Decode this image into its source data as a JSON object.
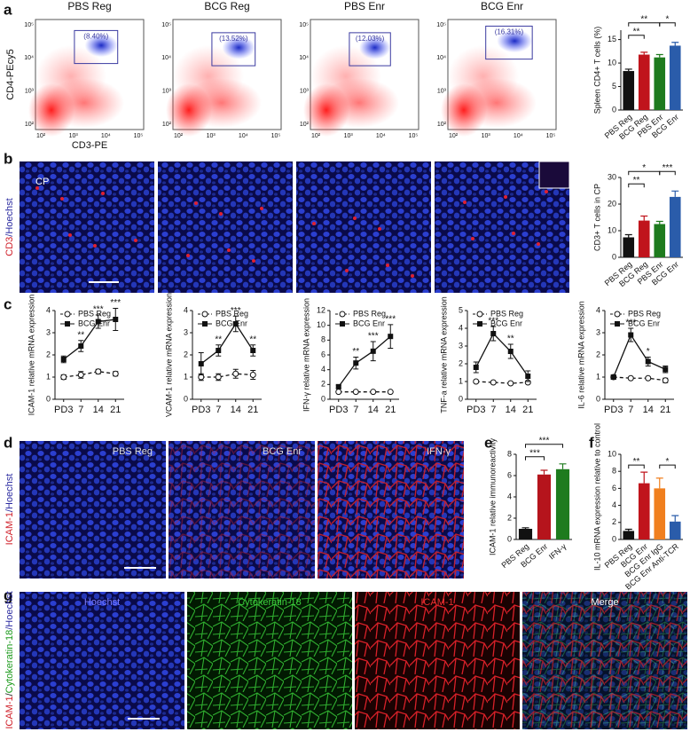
{
  "panels": {
    "labels": [
      "a",
      "b",
      "c",
      "d",
      "e",
      "f",
      "g"
    ],
    "flow": {
      "titles": [
        "PBS Reg",
        "BCG Reg",
        "PBS Enr",
        "BCG Enr"
      ],
      "gates": [
        "(8.40%)",
        "(13.52%)",
        "(12.03%)",
        "(16.31%)"
      ],
      "y_label": "CD4-PEcy5",
      "x_label": "CD3-PE",
      "ticks": [
        "10²",
        "10³",
        "10⁴",
        "10⁵"
      ]
    },
    "b": {
      "label_parts": [
        "CD3",
        "/Hoechst"
      ],
      "region": "CP"
    },
    "d": {
      "titles": [
        "PBS Reg",
        "BCG Enr",
        "IFN-γ"
      ],
      "label_parts": [
        "ICAM-1",
        "/Hoechst"
      ]
    },
    "g": {
      "titles": [
        "Hoechst",
        "Cytokeratin-18",
        "ICAM-1",
        "Merge"
      ],
      "label_parts": [
        "ICAM-1",
        "/",
        "Cytokeratin-18",
        "/Hoechst"
      ]
    }
  },
  "chart_data": [
    {
      "type": "bar",
      "y_label": "Spleen CD4+ T cells (%)",
      "categories": [
        "PBS Reg",
        "BCG Reg",
        "PBS Enr",
        "BCG Enr"
      ],
      "values": [
        8.3,
        11.8,
        11.2,
        13.7
      ],
      "errors": [
        0.4,
        0.5,
        0.6,
        0.7
      ],
      "colors": [
        "#111111",
        "#c0141c",
        "#1e7b1e",
        "#2a5caa"
      ],
      "ylim": [
        0,
        17
      ],
      "yticks": [
        0,
        5,
        10,
        15
      ],
      "annotations": [
        "**",
        "**",
        "*"
      ]
    },
    {
      "type": "bar",
      "y_label": "CD3+ T cells in CP",
      "categories": [
        "PBS Reg",
        "BCG Reg",
        "PBS Enr",
        "BCG Enr"
      ],
      "values": [
        7.5,
        13.8,
        12.5,
        22.7
      ],
      "errors": [
        1.0,
        1.7,
        1.0,
        2.2
      ],
      "colors": [
        "#111111",
        "#c0141c",
        "#1e7b1e",
        "#2a5caa"
      ],
      "ylim": [
        0,
        30
      ],
      "yticks": [
        0,
        10,
        20,
        30
      ],
      "annotations": [
        "**",
        "*",
        "***"
      ]
    },
    {
      "type": "line",
      "y_label": "ICAM-1 relative mRNA expression",
      "categories": [
        "PD3",
        "7",
        "14",
        "21"
      ],
      "ylim": [
        0,
        4
      ],
      "yticks": [
        0,
        1,
        2,
        3,
        4
      ],
      "annotations": [
        null,
        "**",
        "***",
        "***"
      ],
      "series": [
        {
          "name": "PBS Reg",
          "color": "#111111",
          "marker": "circle",
          "dashed": true,
          "values": [
            1.0,
            1.1,
            1.25,
            1.15
          ],
          "errors": [
            0.1,
            0.15,
            0.1,
            0.1
          ]
        },
        {
          "name": "BCG Enr",
          "color": "#111111",
          "marker": "square",
          "dashed": false,
          "values": [
            1.8,
            2.4,
            3.5,
            3.6
          ],
          "errors": [
            0.15,
            0.25,
            0.3,
            0.5
          ]
        }
      ]
    },
    {
      "type": "line",
      "y_label": "VCAM-1 relative mRNA expression",
      "categories": [
        "PD3",
        "7",
        "14",
        "21"
      ],
      "ylim": [
        0,
        4
      ],
      "yticks": [
        0,
        1,
        2,
        3,
        4
      ],
      "annotations": [
        null,
        "**",
        "***",
        "**"
      ],
      "series": [
        {
          "name": "PBS Reg",
          "color": "#111111",
          "marker": "circle",
          "dashed": true,
          "values": [
            1.0,
            1.0,
            1.15,
            1.1
          ],
          "errors": [
            0.15,
            0.15,
            0.2,
            0.2
          ]
        },
        {
          "name": "BCG Enr",
          "color": "#111111",
          "marker": "square",
          "dashed": false,
          "values": [
            1.6,
            2.2,
            3.4,
            2.2
          ],
          "errors": [
            0.5,
            0.25,
            0.35,
            0.25
          ]
        }
      ]
    },
    {
      "type": "line",
      "y_label": "IFN-γ relative mRNA expression",
      "categories": [
        "PD3",
        "7",
        "14",
        "21"
      ],
      "ylim": [
        0,
        12
      ],
      "yticks": [
        0,
        2,
        4,
        6,
        8,
        10,
        12
      ],
      "annotations": [
        null,
        "**",
        "***",
        "***"
      ],
      "series": [
        {
          "name": "PBS Reg",
          "color": "#111111",
          "marker": "circle",
          "dashed": true,
          "values": [
            1.0,
            1.0,
            1.0,
            1.0
          ],
          "errors": [
            0.1,
            0.1,
            0.1,
            0.1
          ]
        },
        {
          "name": "BCG Enr",
          "color": "#111111",
          "marker": "square",
          "dashed": false,
          "values": [
            1.7,
            4.9,
            6.5,
            8.5
          ],
          "errors": [
            0.2,
            0.8,
            1.3,
            1.6
          ]
        }
      ]
    },
    {
      "type": "line",
      "y_label": "TNF-a relative mRNA expression",
      "categories": [
        "PD3",
        "7",
        "14",
        "21"
      ],
      "ylim": [
        0,
        5
      ],
      "yticks": [
        0,
        1,
        2,
        3,
        4,
        5
      ],
      "annotations": [
        null,
        "***",
        "**",
        null
      ],
      "series": [
        {
          "name": "PBS Reg",
          "color": "#111111",
          "marker": "circle",
          "dashed": true,
          "values": [
            1.0,
            0.95,
            0.9,
            0.95
          ],
          "errors": [
            0.05,
            0.05,
            0.05,
            0.05
          ]
        },
        {
          "name": "BCG Enr",
          "color": "#111111",
          "marker": "square",
          "dashed": false,
          "values": [
            1.8,
            3.7,
            2.7,
            1.3
          ],
          "errors": [
            0.3,
            0.4,
            0.4,
            0.3
          ]
        }
      ]
    },
    {
      "type": "line",
      "y_label": "IL-6 relative mRNA expression",
      "categories": [
        "PD3",
        "7",
        "14",
        "21"
      ],
      "ylim": [
        0,
        4
      ],
      "yticks": [
        0,
        1,
        2,
        3,
        4
      ],
      "annotations": [
        null,
        "***",
        "*",
        null
      ],
      "series": [
        {
          "name": "PBS Reg",
          "color": "#111111",
          "marker": "circle",
          "dashed": true,
          "values": [
            1.0,
            0.95,
            0.95,
            0.85
          ],
          "errors": [
            0.05,
            0.05,
            0.05,
            0.1
          ]
        },
        {
          "name": "BCG Enr",
          "color": "#111111",
          "marker": "square",
          "dashed": false,
          "values": [
            1.0,
            2.9,
            1.7,
            1.35
          ],
          "errors": [
            0.1,
            0.3,
            0.2,
            0.15
          ]
        }
      ]
    },
    {
      "type": "bar",
      "y_label": "ICAM-1 relative immunoreactivity",
      "categories": [
        "PBS Reg",
        "BCG Enr",
        "IFN-γ"
      ],
      "values": [
        1.0,
        6.1,
        6.6
      ],
      "errors": [
        0.1,
        0.4,
        0.5
      ],
      "colors": [
        "#111111",
        "#b5141c",
        "#1e7b1e"
      ],
      "ylim": [
        0,
        8
      ],
      "yticks": [
        0,
        2,
        4,
        6,
        8
      ],
      "annotations": [
        "***",
        "***"
      ]
    },
    {
      "type": "bar",
      "y_label": "IL-10 mRNA expression relative to control",
      "categories": [
        "PBS Reg",
        "BCG Enr",
        "BCG Enr IgG",
        "BCG Enr Anti-TCR"
      ],
      "values": [
        1.0,
        6.6,
        6.0,
        2.1
      ],
      "errors": [
        0.2,
        1.3,
        1.2,
        0.7
      ],
      "colors": [
        "#111111",
        "#c0141c",
        "#f07f1e",
        "#2a5caa"
      ],
      "ylim": [
        0,
        10
      ],
      "yticks": [
        0,
        2,
        4,
        6,
        8,
        10
      ],
      "annotations": [
        "**",
        "*"
      ]
    }
  ]
}
